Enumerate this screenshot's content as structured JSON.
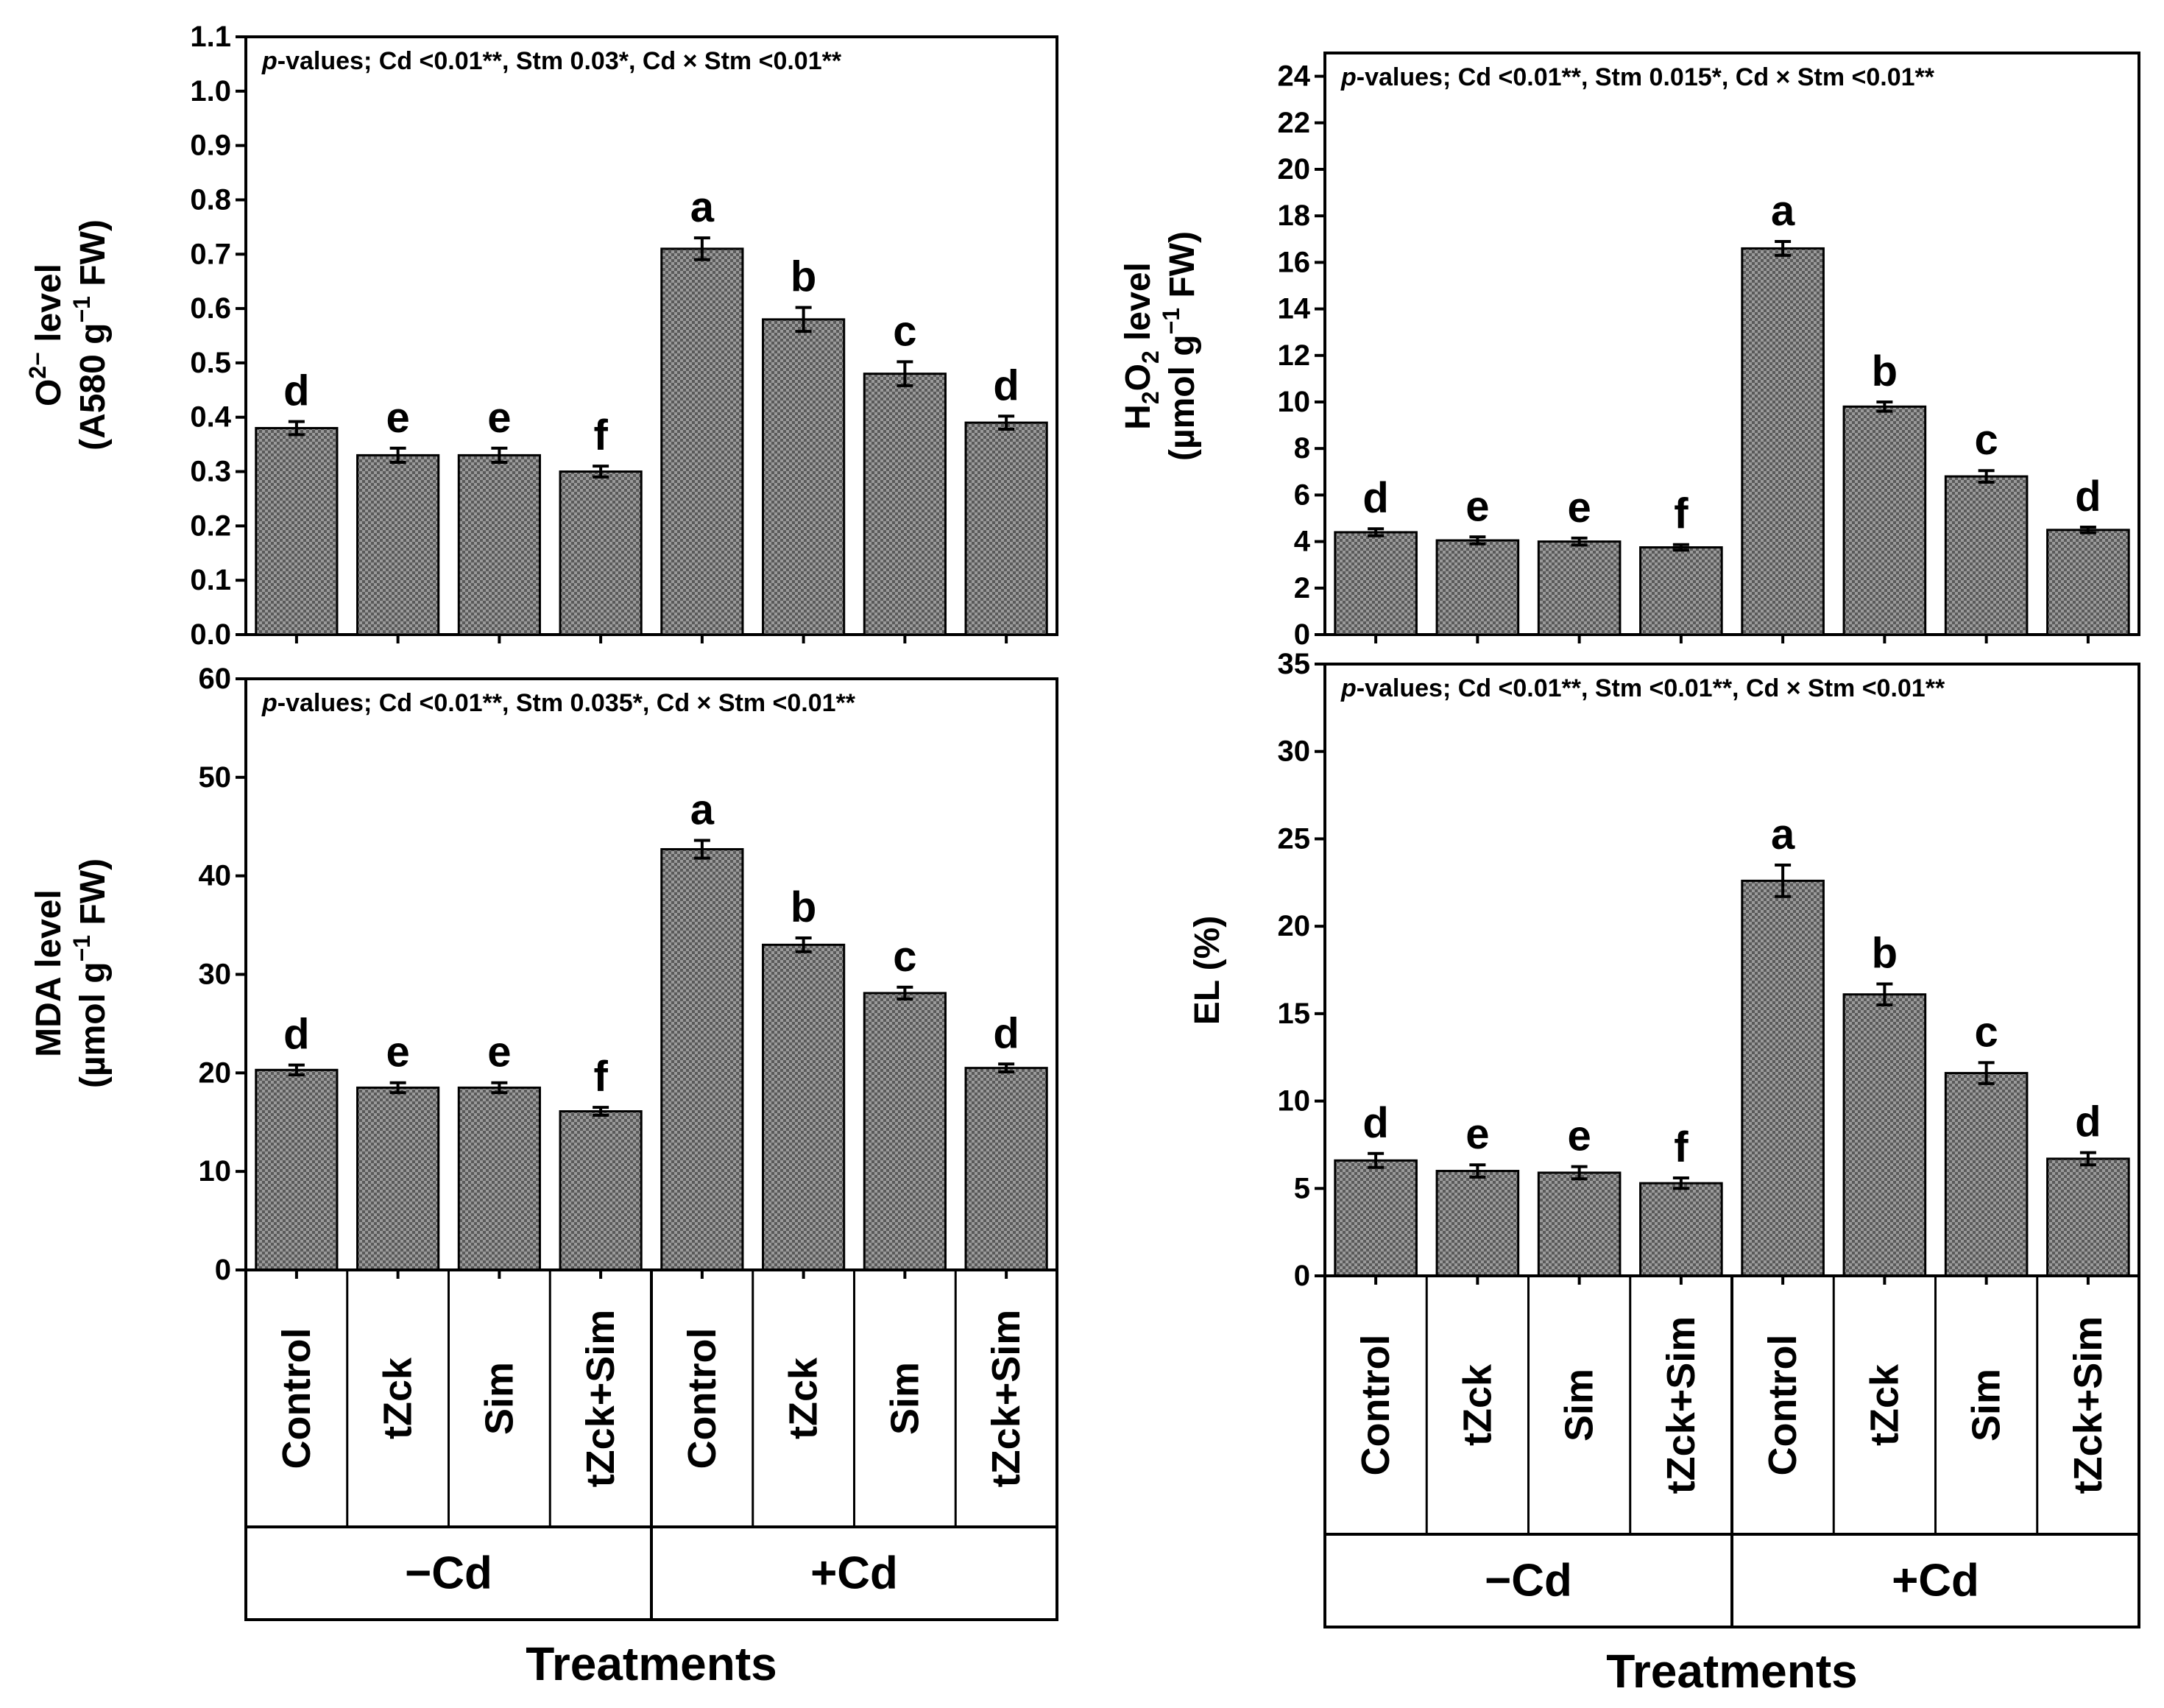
{
  "chart_data": [
    {
      "type": "bar",
      "panel": "top-left",
      "annotation_prefix": "p",
      "annotation": "-values; Cd <0.01**, Stm 0.03*, Cd × Stm <0.01**",
      "ylabel_main": "O",
      "ylabel_sup": "2−",
      "ylabel_rest": " level",
      "ylabel_unit_pre": "(A580 g",
      "ylabel_unit_sup": "−1",
      "ylabel_unit_post": " FW)",
      "ylim": [
        0,
        1.1
      ],
      "ytick_step": 0.1,
      "ytick_labels": [
        "0.0",
        "0.1",
        "0.2",
        "0.3",
        "0.4",
        "0.5",
        "0.6",
        "0.7",
        "0.8",
        "0.9",
        "1.0",
        "1.1"
      ],
      "values": [
        0.38,
        0.33,
        0.33,
        0.3,
        0.71,
        0.58,
        0.48,
        0.39
      ],
      "errors": [
        0.012,
        0.013,
        0.013,
        0.01,
        0.02,
        0.022,
        0.022,
        0.012
      ],
      "letters": [
        "d",
        "e",
        "e",
        "f",
        "a",
        "b",
        "c",
        "d"
      ]
    },
    {
      "type": "bar",
      "panel": "top-right",
      "annotation_prefix": "p",
      "annotation": "-values; Cd <0.01**, Stm 0.015*, Cd × Stm <0.01**",
      "ylabel_main": "H",
      "ylabel_sub": "2",
      "ylabel_mid": "O",
      "ylabel_sub2": "2",
      "ylabel_rest": " level",
      "ylabel_unit_pre": "(µmol g",
      "ylabel_unit_sup": "−1",
      "ylabel_unit_post": " FW)",
      "ylim": [
        0,
        25
      ],
      "ytick_step": 2,
      "ytick_labels": [
        "0",
        "2",
        "4",
        "6",
        "8",
        "10",
        "12",
        "14",
        "16",
        "18",
        "20",
        "22",
        "24"
      ],
      "values": [
        4.4,
        4.05,
        4.0,
        3.75,
        16.6,
        9.8,
        6.8,
        4.5
      ],
      "errors": [
        0.15,
        0.15,
        0.15,
        0.12,
        0.3,
        0.2,
        0.25,
        0.12
      ],
      "letters": [
        "d",
        "e",
        "e",
        "f",
        "a",
        "b",
        "c",
        "d"
      ]
    },
    {
      "type": "bar",
      "panel": "bottom-left",
      "annotation_prefix": "p",
      "annotation": "-values; Cd <0.01**, Stm 0.035*, Cd × Stm <0.01**",
      "ylabel_rest": "MDA level",
      "ylabel_unit_pre": "(µmol g",
      "ylabel_unit_sup": "−1",
      "ylabel_unit_post": " FW)",
      "ylim": [
        0,
        60
      ],
      "ytick_step": 10,
      "ytick_labels": [
        "0",
        "10",
        "20",
        "30",
        "40",
        "50",
        "60"
      ],
      "values": [
        20.3,
        18.5,
        18.5,
        16.1,
        42.7,
        33.0,
        28.1,
        20.5
      ],
      "errors": [
        0.5,
        0.5,
        0.5,
        0.4,
        0.9,
        0.7,
        0.6,
        0.4
      ],
      "letters": [
        "d",
        "e",
        "e",
        "f",
        "a",
        "b",
        "c",
        "d"
      ]
    },
    {
      "type": "bar",
      "panel": "bottom-right",
      "annotation_prefix": "p",
      "annotation": "-values; Cd <0.01**, Stm <0.01**, Cd × Stm <0.01**",
      "ylabel_rest": "EL (%)",
      "ylim": [
        0,
        35
      ],
      "ytick_step": 5,
      "ytick_labels": [
        "0",
        "5",
        "10",
        "15",
        "20",
        "25",
        "30",
        "35"
      ],
      "values": [
        6.6,
        6.0,
        5.9,
        5.3,
        22.6,
        16.1,
        11.6,
        6.7
      ],
      "errors": [
        0.4,
        0.35,
        0.35,
        0.3,
        0.9,
        0.6,
        0.6,
        0.35
      ],
      "letters": [
        "d",
        "e",
        "e",
        "f",
        "a",
        "b",
        "c",
        "d"
      ]
    }
  ],
  "categories": [
    "Control",
    "tZck",
    "Sim",
    "tZck+Sim",
    "Control",
    "tZck",
    "Sim",
    "tZck+Sim"
  ],
  "groups": [
    "−Cd",
    "+Cd"
  ],
  "xlabel": "Treatments",
  "colors": {
    "bar_fill": "#9a9a9a",
    "axis": "#000000"
  }
}
